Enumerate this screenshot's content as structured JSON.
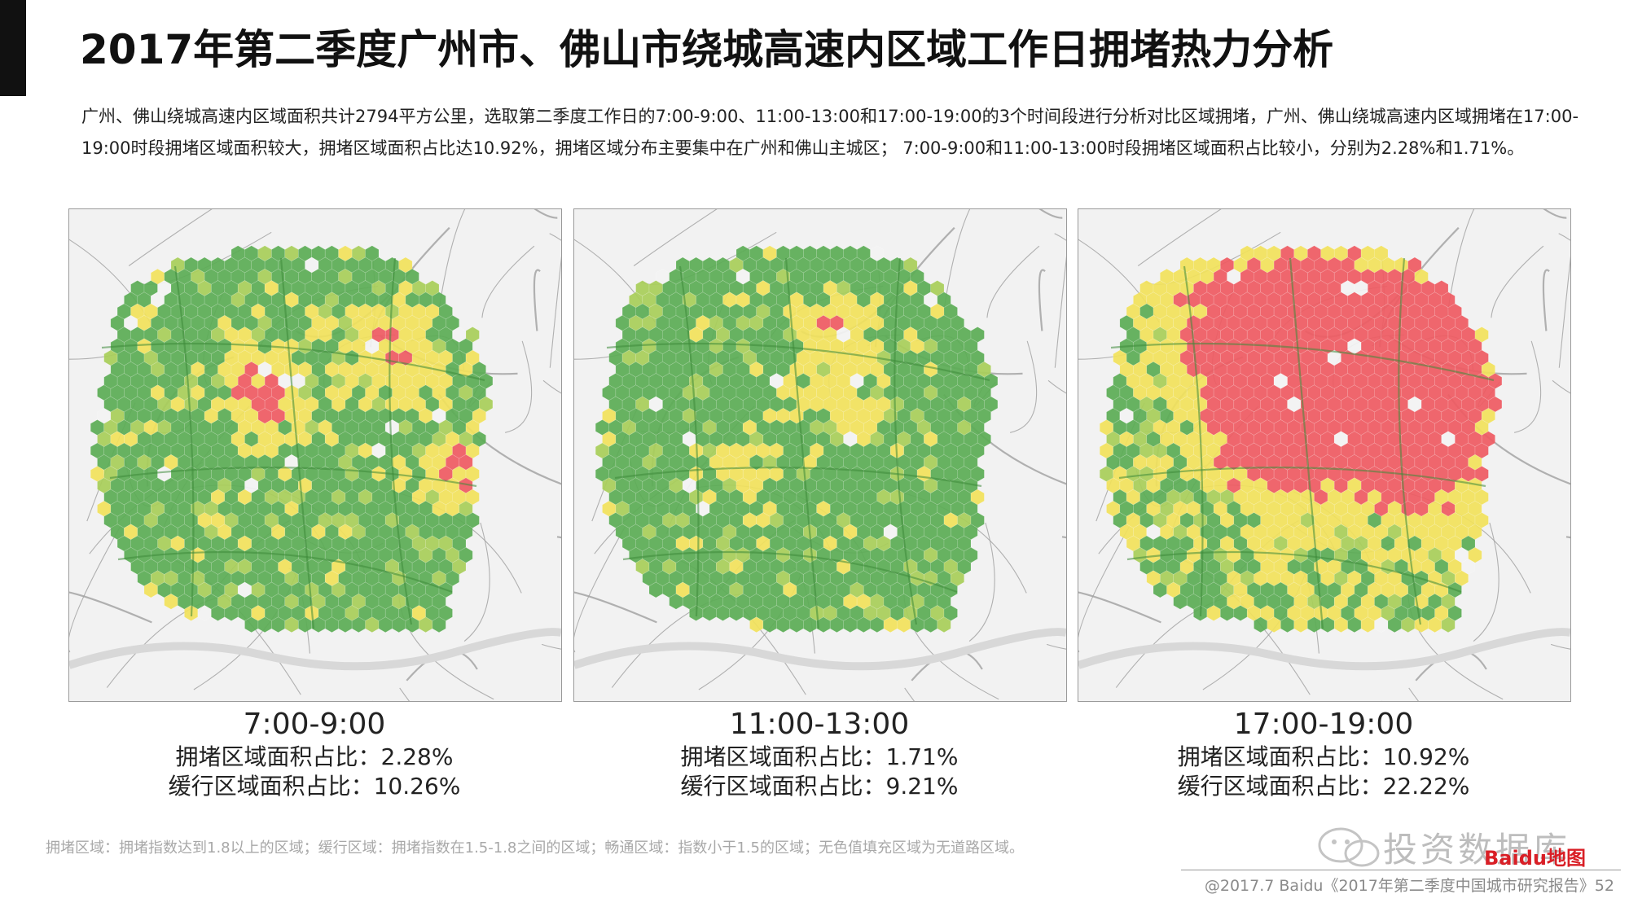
{
  "title": "2017年第二季度广州市、佛山市绕城高速内区域工作日拥堵热力分析",
  "intro": "广州、佛山绕城高速内区域面积共计2794平方公里，选取第二季度工作日的7:00-9:00、11:00-13:00和17:00-19:00的3个时间段进行分析对比区域拥堵，广州、佛山绕城高速内区域拥堵在17:00-19:00时段拥堵区域面积较大，拥堵区域面积占比达10.92%，拥堵区域分布主要集中在广州和佛山主城区； 7:00-9:00和11:00-13:00时段拥堵区域面积占比较小，分别为2.28%和1.71%。",
  "colors": {
    "congested": "#ef5b62",
    "slow": "#f2e25c",
    "smooth": "#5cad55",
    "no_road": "#f4f4f4",
    "road_line": "#9f9f9f"
  },
  "maps": [
    {
      "time": "7:00-9:00",
      "congested_line": "拥堵区域面积占比：2.28%",
      "slow_line": "缓行区域面积占比：10.26%",
      "congested_pct": 2.28,
      "slow_pct": 10.26
    },
    {
      "time": "11:00-13:00",
      "congested_line": "拥堵区域面积占比：1.71%",
      "slow_line": "缓行区域面积占比：9.21%",
      "congested_pct": 1.71,
      "slow_pct": 9.21
    },
    {
      "time": "17:00-19:00",
      "congested_line": "拥堵区域面积占比：10.92%",
      "slow_line": "缓行区域面积占比：22.22%",
      "congested_pct": 10.92,
      "slow_pct": 22.22
    }
  ],
  "footnote": "拥堵区域：拥堵指数达到1.8以上的区域；缓行区域：拥堵指数在1.5-1.8之间的区域；畅通区域：指数小于1.5的区域；无色值填充区域为无道路区域。",
  "watermark": {
    "text": "投资数据库",
    "brand": "Baidu地图"
  },
  "copyright": "@2017.7 Baidu《2017年第二季度中国城市研究报告》52"
}
